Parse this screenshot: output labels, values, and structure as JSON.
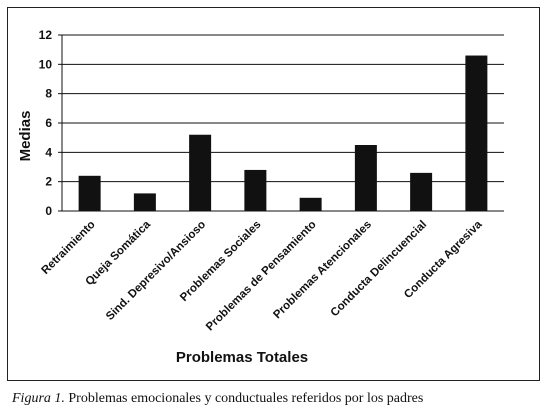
{
  "chart_data": {
    "type": "bar",
    "categories": [
      "Retraimiento",
      "Queja Somática",
      "Sind. Depresivo/Ansioso",
      "Problemas Sociales",
      "Problemas de Pensamiento",
      "Problemas Atencionales",
      "Conducta Delincuencial",
      "Conducta Agresiva"
    ],
    "values": [
      2.4,
      1.2,
      5.2,
      2.8,
      0.9,
      4.5,
      2.6,
      10.6
    ],
    "xlabel": "Problemas Totales",
    "ylabel": "Medias",
    "ylim": [
      0,
      12
    ],
    "yticks": [
      0,
      2,
      4,
      6,
      8,
      10,
      12
    ],
    "grid": true,
    "bar_color": "#111111"
  },
  "caption": {
    "figure_label": "Figura 1.",
    "text": " Problemas emocionales y conductuales referidos por los padres"
  }
}
